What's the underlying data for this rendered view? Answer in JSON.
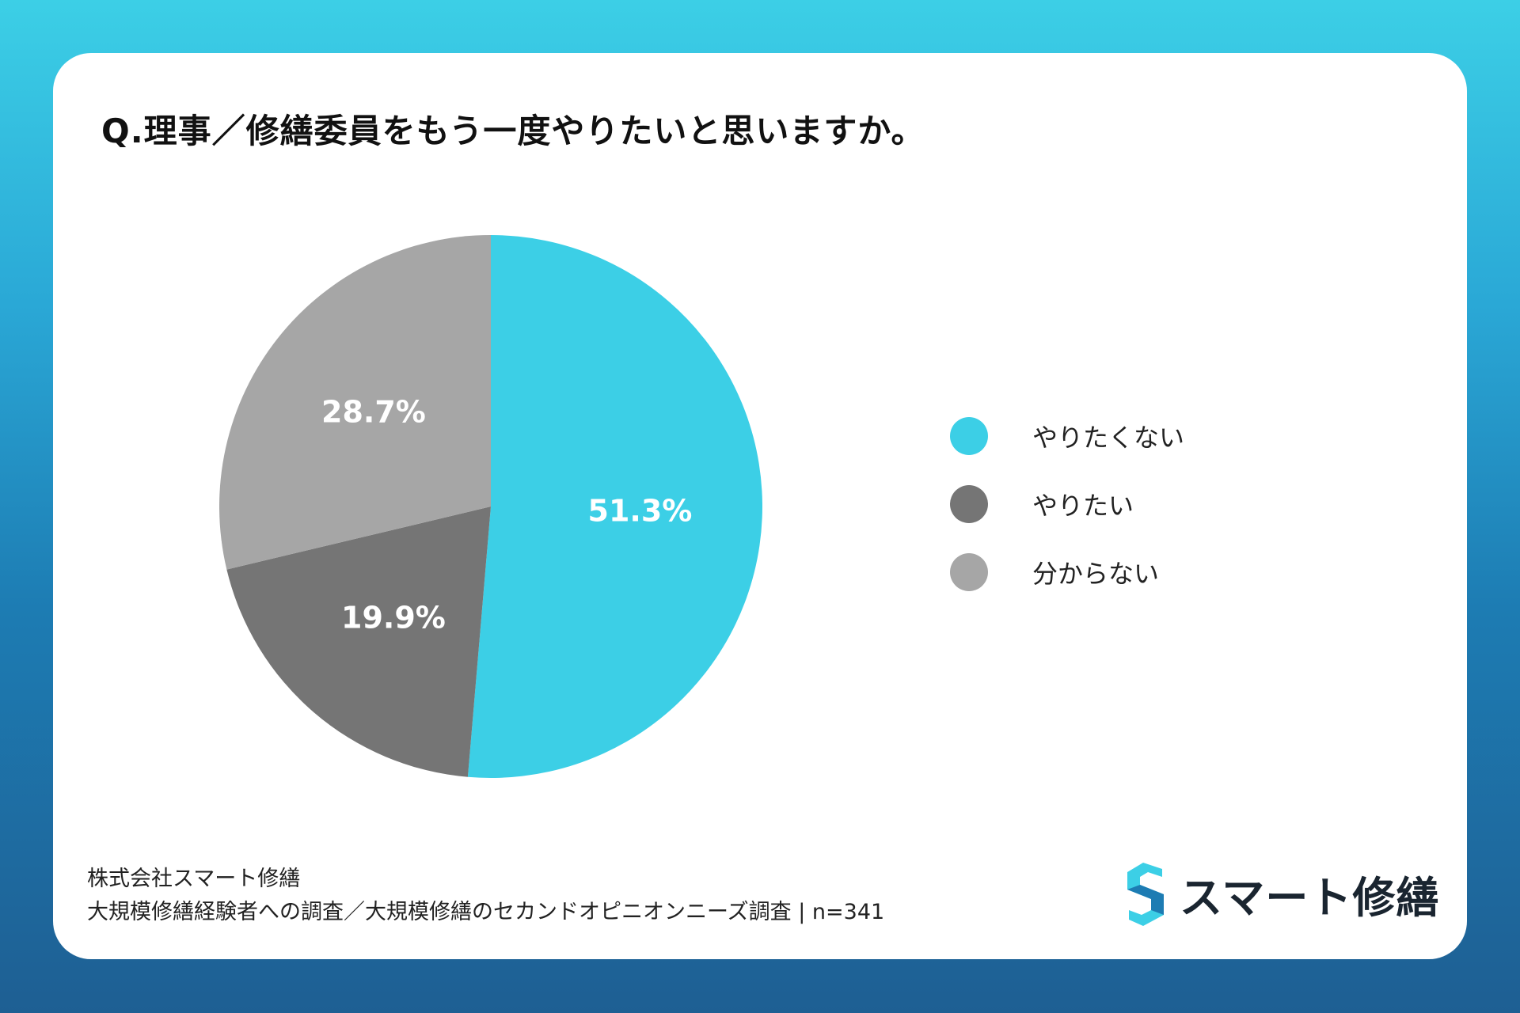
{
  "title": "Q.理事／修繕委員をもう一度やりたいと思いますか。",
  "chart_data": {
    "type": "pie",
    "slices": [
      {
        "label": "やりたくない",
        "value": 51.3,
        "display": "51.3%",
        "color": "#3ccfe6"
      },
      {
        "label": "やりたい",
        "value": 19.9,
        "display": "19.9%",
        "color": "#757575"
      },
      {
        "label": "分からない",
        "value": 28.7,
        "display": "28.7%",
        "color": "#a6a6a6"
      }
    ],
    "start_angle_deg": 0,
    "direction": "clockwise",
    "legend_position": "right"
  },
  "footer": {
    "company": "株式会社スマート修繕",
    "survey": "大規模修繕経験者への調査／大規模修繕のセカンドオピニオンニーズ調査 | n=341"
  },
  "logo": {
    "text": "スマート修繕",
    "mark_icon": "s-logo-icon",
    "colors": [
      "#3ccfe6",
      "#1d7cb3"
    ]
  }
}
